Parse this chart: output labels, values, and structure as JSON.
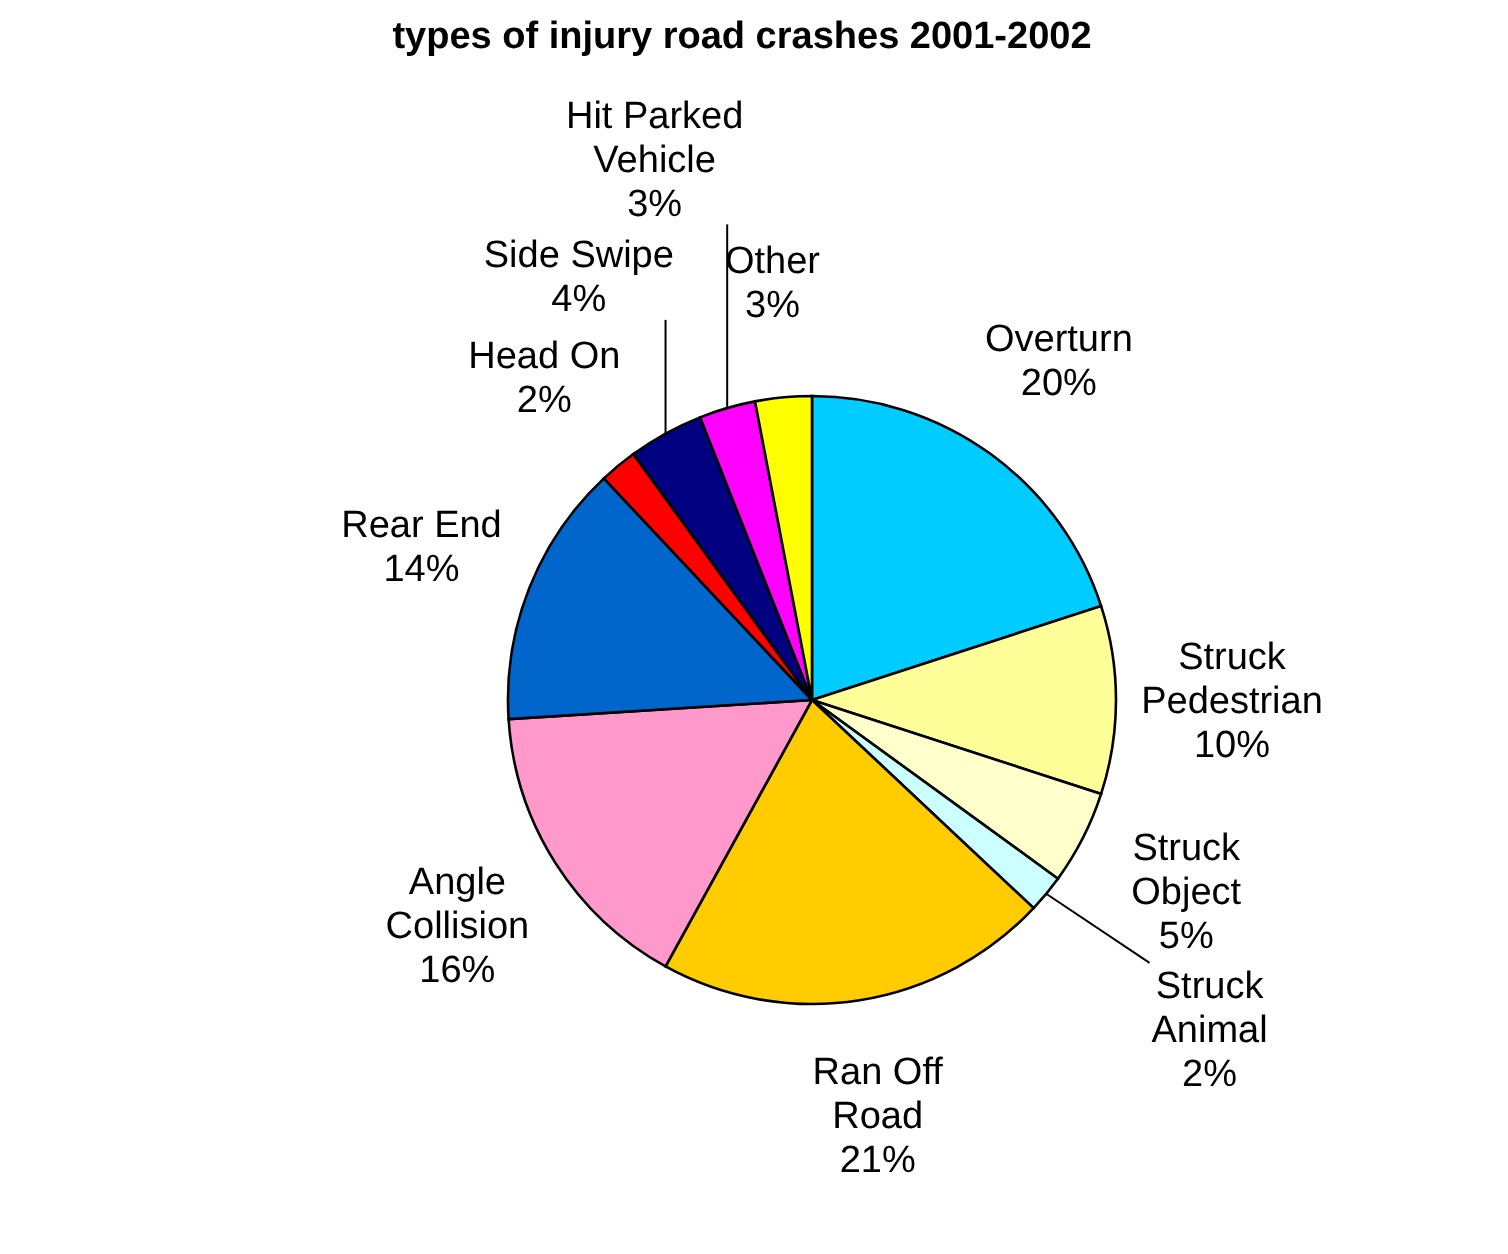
{
  "chart_data": {
    "type": "pie",
    "title": "types of injury road crashes 2001-2002",
    "categories": [
      "Overturn",
      "Struck Pedestrian",
      "Struck Object",
      "Struck Animal",
      "Ran Off Road",
      "Angle Collision",
      "Rear End",
      "Head On",
      "Side Swipe",
      "Hit Parked Vehicle",
      "Other"
    ],
    "values": [
      20,
      10,
      5,
      2,
      21,
      16,
      14,
      2,
      4,
      3,
      3
    ],
    "value_labels": [
      "20%",
      "10%",
      "5%",
      "2%",
      "21%",
      "16%",
      "14%",
      "2%",
      "4%",
      "3%",
      "3%"
    ],
    "colors": [
      "#00ccff",
      "#ffff99",
      "#ffffcc",
      "#ccffff",
      "#ffcc00",
      "#ff99cc",
      "#0066cc",
      "#ff0000",
      "#000080",
      "#ff00ff",
      "#ffff00"
    ],
    "legend": false
  }
}
